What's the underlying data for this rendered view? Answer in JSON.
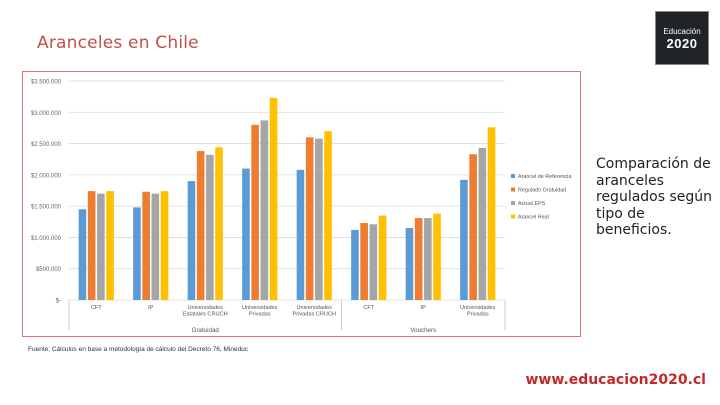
{
  "slide": {
    "title": "Aranceles en Chile",
    "side_text": "Comparación de aranceles regulados según tipo de beneficios.",
    "footnote": "Fuente: Cálculos en base a metodología de cálculo del Decreto 76, Mineduc",
    "url": "www.educacion2020.cl",
    "logo_line1": "Educación",
    "logo_line2": "2020"
  },
  "colors": {
    "title": "#c0504d",
    "frame": "#e57373",
    "grid": "#d9d9d9",
    "series": [
      "#5b9bd5",
      "#ed7d31",
      "#a5a5a5",
      "#ffc000"
    ]
  },
  "chart_data": {
    "type": "bar",
    "title": "",
    "xlabel": "",
    "ylabel": "",
    "ylim": [
      0,
      3500000
    ],
    "yticks": [
      0,
      500000,
      1000000,
      1500000,
      2000000,
      2500000,
      3000000,
      3500000
    ],
    "ytick_labels": [
      "$-",
      "$500.000",
      "$1.000.000",
      "$1.500.000",
      "$2.000.000",
      "$2.500.000",
      "$3.000.000",
      "$3.500.000"
    ],
    "categories": [
      "CFT",
      "IP",
      "Universidades Estatales CRUCH",
      "Universidades Privadas",
      "Universidades Privadas CRUCH",
      "CFT",
      "IP",
      "Universidades Privadas"
    ],
    "groups": [
      {
        "label": "Gratuidad",
        "from": 0,
        "to": 4
      },
      {
        "label": "Vouchers",
        "from": 5,
        "to": 7
      }
    ],
    "series": [
      {
        "name": "Arancel de Referencia",
        "values": [
          1450000,
          1480000,
          1900000,
          2100000,
          2080000,
          1120000,
          1150000,
          1920000
        ]
      },
      {
        "name": "Regulado Gratuidad",
        "values": [
          1740000,
          1730000,
          2380000,
          2800000,
          2600000,
          1230000,
          1310000,
          2330000
        ]
      },
      {
        "name": "Actual EPS",
        "values": [
          1700000,
          1700000,
          2320000,
          2870000,
          2580000,
          1210000,
          1310000,
          2430000
        ]
      },
      {
        "name": "Arancel Real",
        "values": [
          1740000,
          1740000,
          2440000,
          3230000,
          2700000,
          1350000,
          1380000,
          2760000
        ]
      }
    ],
    "legend_position": "right"
  }
}
